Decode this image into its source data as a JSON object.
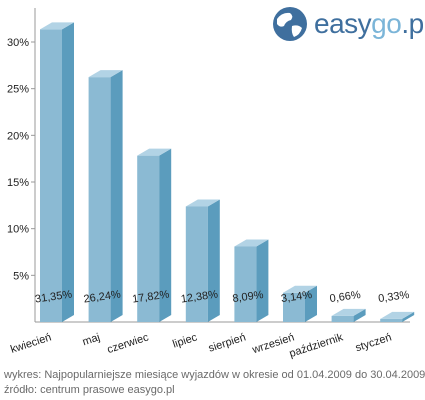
{
  "chart_data": {
    "type": "bar",
    "title": "",
    "xlabel": "",
    "ylabel": "",
    "categories": [
      "kwiecień",
      "maj",
      "czerwiec",
      "lipiec",
      "sierpień",
      "wrzesień",
      "październik",
      "styczeń"
    ],
    "values": [
      31.35,
      26.24,
      17.82,
      12.38,
      8.09,
      3.14,
      0.66,
      0.33
    ],
    "value_labels": [
      "31,35%",
      "26,24%",
      "17,82%",
      "12,38%",
      "8,09%",
      "3,14%",
      "0,66%",
      "0,33%"
    ],
    "yticks": [
      5,
      10,
      15,
      20,
      25,
      30
    ],
    "ytick_labels": [
      "5%",
      "10%",
      "15%",
      "20%",
      "25%",
      "30%"
    ],
    "ylim": [
      0,
      33
    ],
    "grid": false,
    "colors": {
      "bar_front": "#8bbad3",
      "bar_side": "#5b9cbd",
      "bar_top": "#b2d3e5",
      "axis": "#999999"
    }
  },
  "logo": {
    "text_a": "easy",
    "text_b": "go",
    "text_c": ".pl"
  },
  "footer": {
    "line1": "wykres: Najpopularniejsze miesiące wyjazdów w okresie od 01.04.2009 do 30.04.2009",
    "line2": "źródło: centrum prasowe easygo.pl"
  }
}
